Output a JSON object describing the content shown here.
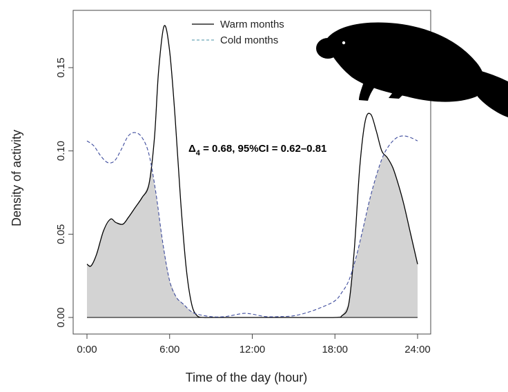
{
  "chart_data": {
    "type": "area",
    "title": "",
    "xlabel": "Time of the day (hour)",
    "ylabel": "Density of activity",
    "xlim": [
      0,
      24
    ],
    "ylim": [
      0,
      0.175
    ],
    "x_ticks": [
      0,
      6,
      12,
      18,
      24
    ],
    "x_tick_labels": [
      "0:00",
      "6:00",
      "12:00",
      "18:00",
      "24:00"
    ],
    "y_ticks": [
      0,
      0.05,
      0.1,
      0.15
    ],
    "y_tick_labels": [
      "0.00",
      "0.05",
      "0.10",
      "0.15"
    ],
    "grid": false,
    "legend_position": "top-center",
    "annotation": {
      "delta_symbol": "Δ",
      "delta_subscript": "4",
      "text": " = 0.68, 95%CI = 0.62–0.81"
    },
    "overlap_fill_color": "#d3d3d3",
    "series": [
      {
        "name": "Warm months",
        "line_style": "solid",
        "color": "#000000",
        "x": [
          0,
          0.3,
          0.7,
          1.2,
          1.7,
          2.1,
          2.6,
          3.0,
          3.5,
          4.0,
          4.5,
          4.9,
          5.2,
          5.6,
          6.0,
          6.4,
          6.8,
          7.2,
          7.6,
          8.0,
          8.5,
          9.0,
          12.0,
          15.0,
          18.0,
          18.5,
          19.0,
          19.4,
          19.8,
          20.2,
          20.6,
          21.0,
          21.4,
          21.8,
          22.2,
          22.6,
          23.0,
          23.5,
          24.0
        ],
        "values": [
          0.032,
          0.031,
          0.038,
          0.052,
          0.059,
          0.057,
          0.056,
          0.06,
          0.066,
          0.072,
          0.08,
          0.108,
          0.148,
          0.175,
          0.16,
          0.12,
          0.07,
          0.03,
          0.008,
          0.001,
          0.0,
          0.0,
          0.0,
          0.0,
          0.0,
          0.001,
          0.008,
          0.04,
          0.09,
          0.118,
          0.122,
          0.112,
          0.1,
          0.096,
          0.09,
          0.08,
          0.068,
          0.05,
          0.032
        ]
      },
      {
        "name": "Cold months",
        "line_style": "dashed",
        "color": "#3c4a9c",
        "x": [
          0,
          0.5,
          1.0,
          1.5,
          2.0,
          2.5,
          3.0,
          3.5,
          4.0,
          4.5,
          5.0,
          5.5,
          6.0,
          6.5,
          7.0,
          7.5,
          8.0,
          9.0,
          10.0,
          11.0,
          11.5,
          12.0,
          13.0,
          14.0,
          15.0,
          16.0,
          17.0,
          18.0,
          18.5,
          19.0,
          19.5,
          20.0,
          20.5,
          21.0,
          21.5,
          22.0,
          22.5,
          23.0,
          23.5,
          24.0
        ],
        "values": [
          0.106,
          0.103,
          0.097,
          0.093,
          0.094,
          0.101,
          0.109,
          0.111,
          0.108,
          0.098,
          0.075,
          0.045,
          0.022,
          0.012,
          0.008,
          0.004,
          0.002,
          0.0005,
          0.0005,
          0.002,
          0.0025,
          0.002,
          0.0005,
          0.0005,
          0.001,
          0.003,
          0.006,
          0.01,
          0.015,
          0.022,
          0.035,
          0.052,
          0.07,
          0.085,
          0.097,
          0.104,
          0.108,
          0.109,
          0.108,
          0.106
        ]
      }
    ]
  },
  "icons": {
    "animal_silhouette": "beaver-silhouette-icon"
  }
}
